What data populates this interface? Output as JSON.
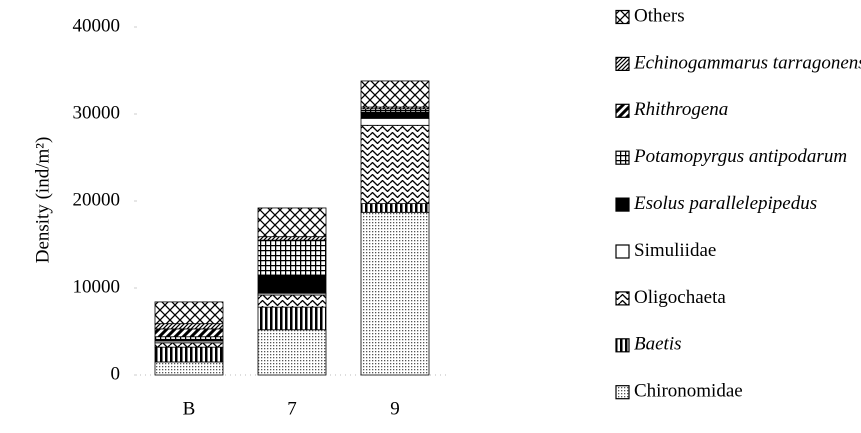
{
  "chart_data": {
    "type": "stacked_bar",
    "y_label": "Density (ind/m²)",
    "categories": [
      "B",
      "7",
      "9"
    ],
    "ylim": [
      0,
      40000
    ],
    "yticks": [
      0,
      10000,
      20000,
      30000,
      40000
    ],
    "series": [
      {
        "name": "Chironomidae",
        "color": "#000000",
        "pattern": "dots",
        "font_style": "normal",
        "values": [
          1500,
          5200,
          18700
        ]
      },
      {
        "name": "Baetis",
        "color": "#000000",
        "pattern": "vlines",
        "font_style": "italic",
        "values": [
          1700,
          2600,
          1000
        ]
      },
      {
        "name": "Oligochaeta",
        "color": "#000000",
        "pattern": "waves",
        "font_style": "normal",
        "values": [
          500,
          1400,
          9000
        ]
      },
      {
        "name": "Simuliidae",
        "color": "#000000",
        "pattern": "none",
        "font_style": "normal",
        "values": [
          200,
          200,
          800
        ]
      },
      {
        "name": "Esolus parallelepipedus",
        "color": "#000000",
        "pattern": "solid",
        "font_style": "italic",
        "values": [
          200,
          2100,
          700
        ]
      },
      {
        "name": "Potamopyrgus antipodarum",
        "color": "#000000",
        "pattern": "grid",
        "font_style": "italic",
        "values": [
          300,
          4000,
          400
        ]
      },
      {
        "name": "Rhithrogena",
        "color": "#000000",
        "pattern": "diag",
        "font_style": "italic",
        "values": [
          900,
          0,
          0
        ]
      },
      {
        "name": "Echinogammarus tarragonensis",
        "color": "#000000",
        "pattern": "hatch",
        "font_style": "italic",
        "values": [
          600,
          400,
          200
        ]
      },
      {
        "name": "Others",
        "color": "#000000",
        "pattern": "cross",
        "font_style": "normal",
        "values": [
          2500,
          3300,
          3000
        ]
      }
    ]
  }
}
